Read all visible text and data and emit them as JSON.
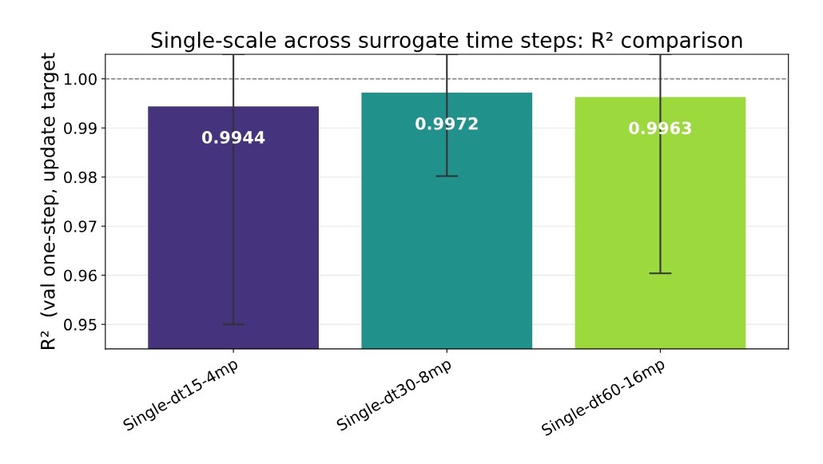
{
  "chart_data": {
    "type": "bar",
    "title": "Single-scale across surrogate time steps: R² comparison",
    "ylabel": "R²  (val one-step, update target",
    "categories": [
      "Single-dt15-4mp",
      "Single-dt30-8mp",
      "Single-dt60-16mp"
    ],
    "values": [
      0.9944,
      0.9972,
      0.9963
    ],
    "colors": [
      "#46337e",
      "#21918c",
      "#9bd93c"
    ],
    "errors": [
      [
        0.95,
        1.005
      ],
      [
        0.9802,
        1.005
      ],
      [
        0.9604,
        1.005
      ]
    ],
    "ylim": [
      0.945,
      1.005
    ],
    "yticks": [
      {
        "value": 0.95,
        "label": "0.95"
      },
      {
        "value": 0.96,
        "label": "0.96"
      },
      {
        "value": 0.97,
        "label": "0.97"
      },
      {
        "value": 0.98,
        "label": "0.98"
      },
      {
        "value": 0.99,
        "label": "0.99"
      },
      {
        "value": 1.0,
        "label": "1.00"
      }
    ],
    "ref_lines": [
      {
        "axis": "y",
        "value": 1.0,
        "color": "#808080",
        "line_style": "dashed"
      }
    ],
    "data_labels": true,
    "grid": true
  }
}
